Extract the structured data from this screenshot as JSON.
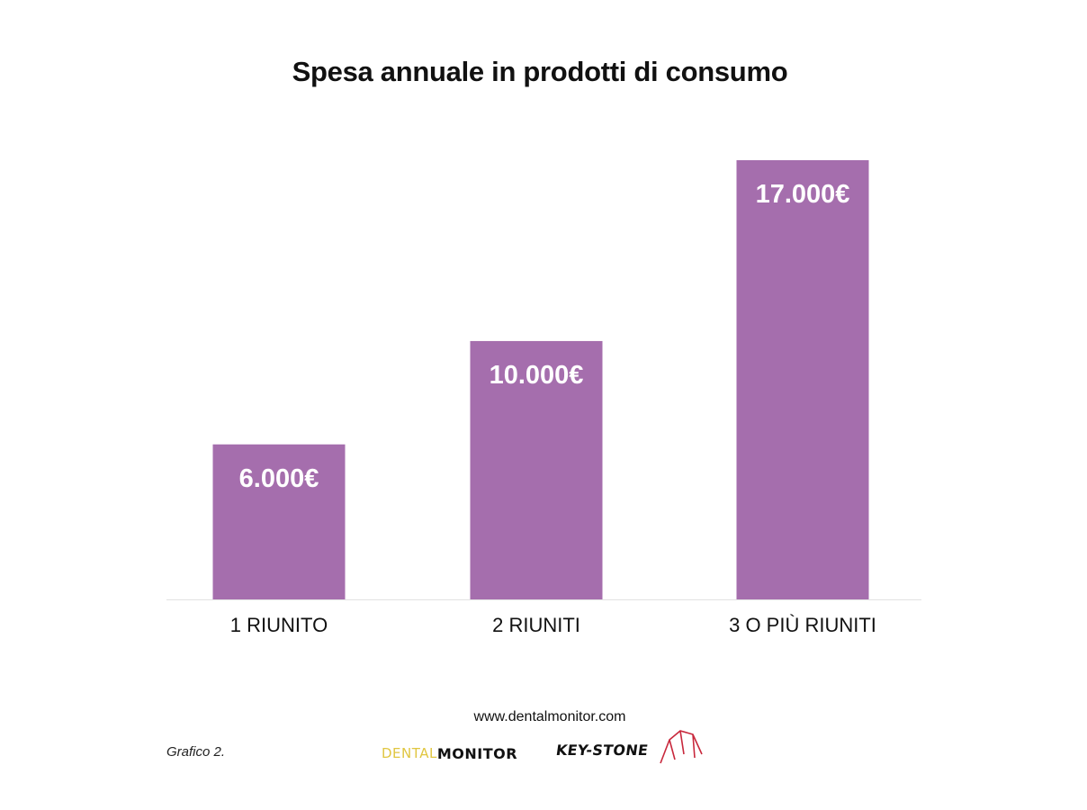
{
  "chart_data": {
    "type": "bar",
    "title": "Spesa annuale in prodotti di consumo",
    "categories": [
      "1 RIUNITO",
      "2 RIUNITI",
      "3 O PIÙ RIUNITI"
    ],
    "values": [
      6000,
      10000,
      17000
    ],
    "value_labels": [
      "6.000€",
      "10.000€",
      "17.000€"
    ],
    "xlabel": "",
    "ylabel": "",
    "ylim": [
      0,
      17000
    ],
    "grid": false,
    "legend": "none",
    "bar_color": "#a56ead"
  },
  "footer": {
    "url": "www.dentalmonitor.com",
    "caption": "Grafico 2.",
    "logo_dental_monitor": {
      "part1": "DENTAL",
      "part2": "MONITOR",
      "color_part1": "#e0c640"
    },
    "logo_keystone": {
      "text": "KEY-STONE",
      "accent_color": "#c8283c"
    }
  }
}
